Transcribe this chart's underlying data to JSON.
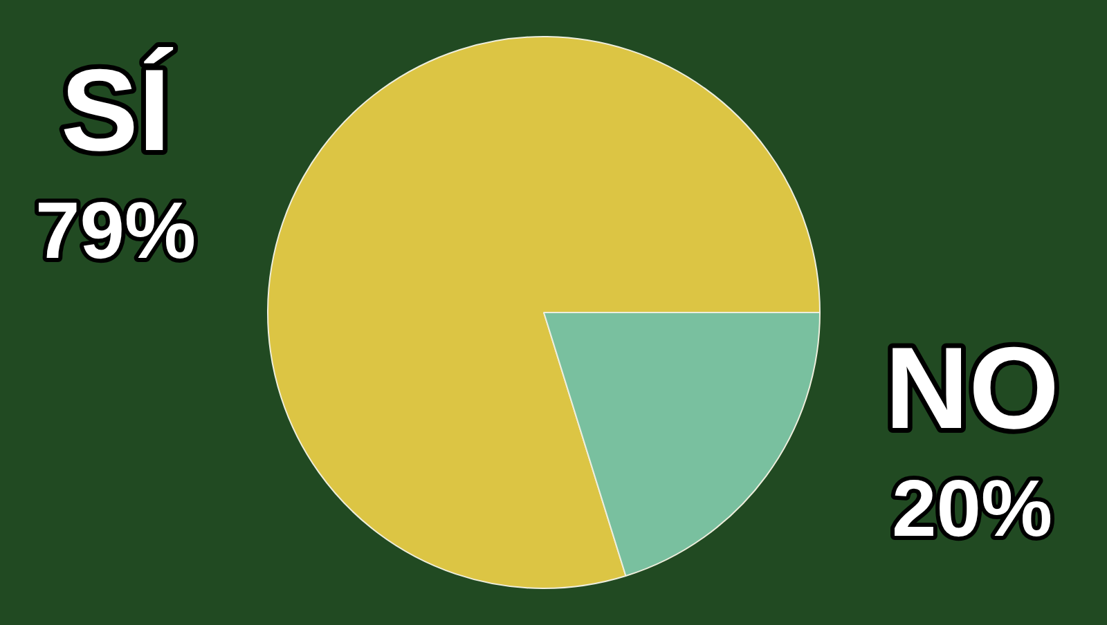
{
  "chart_data": {
    "type": "pie",
    "categories": [
      "SÍ",
      "NO"
    ],
    "values": [
      79,
      20
    ],
    "colors": [
      "#dcc544",
      "#79c09f"
    ],
    "value_labels": [
      "79%",
      "20%"
    ]
  }
}
